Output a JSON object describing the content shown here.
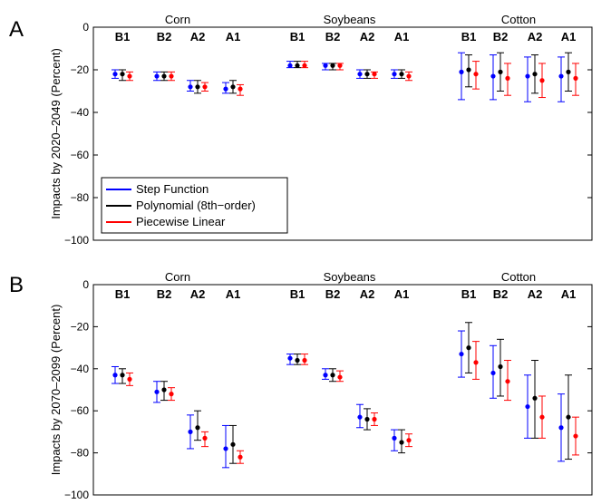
{
  "chart_data": [
    {
      "panel_label": "A",
      "type": "scatter",
      "ylabel": "Impacts by 2020–2049 (Percent)",
      "ylim": [
        -100,
        0
      ],
      "yticks": [
        0,
        -20,
        -40,
        -60,
        -80,
        -100
      ],
      "crops": [
        "Corn",
        "Soybeans",
        "Cotton"
      ],
      "scenarios": [
        "B1",
        "B2",
        "A2",
        "A1"
      ],
      "legend": {
        "placement": "lower-left",
        "entries": [
          "Step Function",
          "Polynomial (8th−order)",
          "Piecewise Linear"
        ]
      },
      "series": [
        {
          "name": "Step Function",
          "color": "#0000ff",
          "values": [
            [
              -22,
              -24,
              -20
            ],
            [
              -23,
              -25,
              -21
            ],
            [
              -28,
              -30,
              -25
            ],
            [
              -29,
              -31,
              -26
            ],
            [
              -18,
              -19,
              -16
            ],
            [
              -18,
              -20,
              -17
            ],
            [
              -22,
              -24,
              -20
            ],
            [
              -22,
              -24,
              -20
            ],
            [
              -21,
              -34,
              -12
            ],
            [
              -23,
              -34,
              -13
            ],
            [
              -23,
              -35,
              -14
            ],
            [
              -23,
              -35,
              -14
            ]
          ]
        },
        {
          "name": "Polynomial (8th−order)",
          "color": "#000000",
          "values": [
            [
              -22,
              -25,
              -20
            ],
            [
              -23,
              -25,
              -21
            ],
            [
              -28,
              -31,
              -25
            ],
            [
              -28,
              -31,
              -25
            ],
            [
              -18,
              -19,
              -16
            ],
            [
              -18,
              -20,
              -17
            ],
            [
              -22,
              -24,
              -20
            ],
            [
              -22,
              -24,
              -20
            ],
            [
              -20,
              -28,
              -13
            ],
            [
              -21,
              -30,
              -12
            ],
            [
              -22,
              -31,
              -13
            ],
            [
              -21,
              -30,
              -12
            ]
          ]
        },
        {
          "name": "Piecewise Linear",
          "color": "#ff0000",
          "values": [
            [
              -23,
              -25,
              -21
            ],
            [
              -23,
              -25,
              -21
            ],
            [
              -28,
              -30,
              -26
            ],
            [
              -29,
              -32,
              -27
            ],
            [
              -18,
              -19,
              -16
            ],
            [
              -18,
              -20,
              -17
            ],
            [
              -22,
              -24,
              -21
            ],
            [
              -23,
              -25,
              -21
            ],
            [
              -22,
              -29,
              -16
            ],
            [
              -24,
              -32,
              -17
            ],
            [
              -25,
              -33,
              -17
            ],
            [
              -24,
              -32,
              -17
            ]
          ]
        }
      ]
    },
    {
      "panel_label": "B",
      "type": "scatter",
      "ylabel": "Impacts by 2070–2099 (Percent)",
      "ylim": [
        -100,
        0
      ],
      "yticks": [
        0,
        -20,
        -40,
        -60,
        -80,
        -100
      ],
      "crops": [
        "Corn",
        "Soybeans",
        "Cotton"
      ],
      "scenarios": [
        "B1",
        "B2",
        "A2",
        "A1"
      ],
      "series": [
        {
          "name": "Step Function",
          "color": "#0000ff",
          "values": [
            [
              -43,
              -47,
              -39
            ],
            [
              -51,
              -56,
              -46
            ],
            [
              -70,
              -78,
              -62
            ],
            [
              -78,
              -87,
              -67
            ],
            [
              -35,
              -38,
              -33
            ],
            [
              -43,
              -45,
              -40
            ],
            [
              -63,
              -68,
              -57
            ],
            [
              -73,
              -79,
              -69
            ],
            [
              -33,
              -44,
              -22
            ],
            [
              -42,
              -54,
              -29
            ],
            [
              -58,
              -73,
              -43
            ],
            [
              -68,
              -84,
              -52
            ]
          ]
        },
        {
          "name": "Polynomial (8th−order)",
          "color": "#000000",
          "values": [
            [
              -43,
              -47,
              -40
            ],
            [
              -50,
              -55,
              -46
            ],
            [
              -68,
              -74,
              -60
            ],
            [
              -76,
              -85,
              -67
            ],
            [
              -36,
              -38,
              -33
            ],
            [
              -43,
              -46,
              -40
            ],
            [
              -64,
              -69,
              -59
            ],
            [
              -75,
              -80,
              -69
            ],
            [
              -30,
              -42,
              -18
            ],
            [
              -39,
              -53,
              -26
            ],
            [
              -54,
              -73,
              -36
            ],
            [
              -63,
              -83,
              -43
            ]
          ]
        },
        {
          "name": "Piecewise Linear",
          "color": "#ff0000",
          "values": [
            [
              -45,
              -48,
              -42
            ],
            [
              -52,
              -55,
              -49
            ],
            [
              -73,
              -77,
              -70
            ],
            [
              -82,
              -85,
              -79
            ],
            [
              -36,
              -38,
              -33
            ],
            [
              -44,
              -46,
              -41
            ],
            [
              -64,
              -67,
              -61
            ],
            [
              -74,
              -77,
              -71
            ],
            [
              -37,
              -45,
              -27
            ],
            [
              -46,
              -55,
              -36
            ],
            [
              -63,
              -73,
              -53
            ],
            [
              -72,
              -81,
              -63
            ]
          ]
        }
      ]
    }
  ]
}
